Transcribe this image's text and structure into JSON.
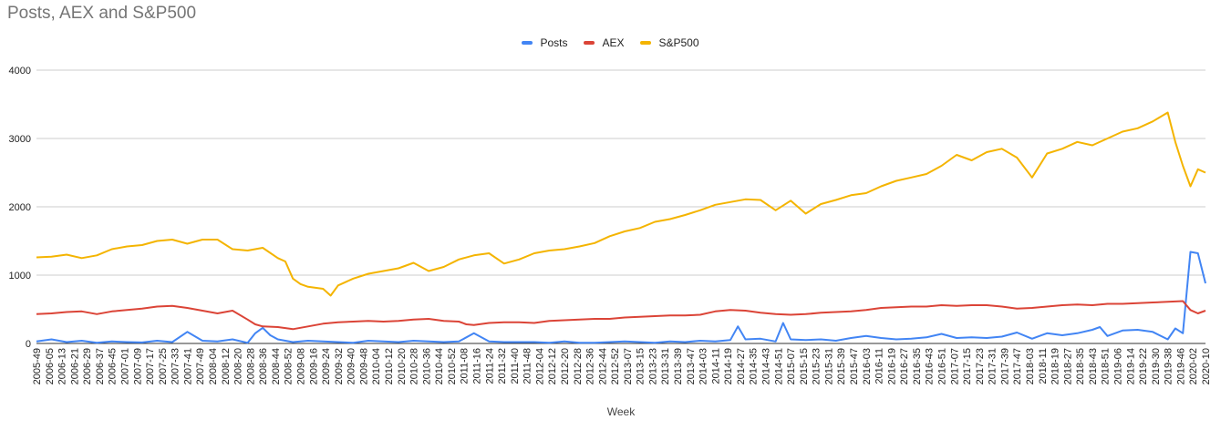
{
  "chart_data": {
    "type": "line",
    "title": "Posts, AEX and S&P500",
    "xlabel": "Week",
    "ylabel": "",
    "ylim": [
      0,
      4000
    ],
    "yticks": [
      0,
      1000,
      2000,
      3000,
      4000
    ],
    "grid": true,
    "legend_position": "top-center",
    "x_start": "2005-49",
    "x_end": "2020-10",
    "x_tick_labels": [
      "2005-49",
      "2006-05",
      "2006-13",
      "2006-21",
      "2006-29",
      "2006-37",
      "2006-45",
      "2007-01",
      "2007-09",
      "2007-17",
      "2007-25",
      "2007-33",
      "2007-41",
      "2007-49",
      "2008-04",
      "2008-12",
      "2008-20",
      "2008-28",
      "2008-36",
      "2008-44",
      "2008-52",
      "2009-08",
      "2009-16",
      "2009-24",
      "2009-32",
      "2009-40",
      "2009-48",
      "2010-04",
      "2010-12",
      "2010-20",
      "2010-28",
      "2010-36",
      "2010-44",
      "2010-52",
      "2011-08",
      "2011-16",
      "2011-24",
      "2011-32",
      "2011-40",
      "2011-48",
      "2012-04",
      "2012-12",
      "2012-20",
      "2012-28",
      "2012-36",
      "2012-44",
      "2012-52",
      "2013-07",
      "2013-15",
      "2013-23",
      "2013-31",
      "2013-39",
      "2013-47",
      "2014-03",
      "2014-11",
      "2014-19",
      "2014-27",
      "2014-35",
      "2014-43",
      "2014-51",
      "2015-07",
      "2015-15",
      "2015-23",
      "2015-31",
      "2015-39",
      "2015-47",
      "2016-03",
      "2016-11",
      "2016-19",
      "2016-27",
      "2016-35",
      "2016-43",
      "2016-51",
      "2017-07",
      "2017-15",
      "2017-23",
      "2017-31",
      "2017-39",
      "2017-47",
      "2018-03",
      "2018-11",
      "2018-19",
      "2018-27",
      "2018-35",
      "2018-43",
      "2018-51",
      "2019-06",
      "2019-14",
      "2019-22",
      "2019-30",
      "2019-38",
      "2019-46",
      "2020-02",
      "2020-10"
    ],
    "series": [
      {
        "name": "Posts",
        "color": "#4285f4",
        "points": [
          [
            0,
            30
          ],
          [
            2,
            60
          ],
          [
            4,
            20
          ],
          [
            6,
            40
          ],
          [
            8,
            10
          ],
          [
            10,
            30
          ],
          [
            12,
            20
          ],
          [
            14,
            15
          ],
          [
            16,
            40
          ],
          [
            18,
            20
          ],
          [
            20,
            170
          ],
          [
            22,
            40
          ],
          [
            24,
            30
          ],
          [
            26,
            60
          ],
          [
            28,
            10
          ],
          [
            29,
            150
          ],
          [
            30,
            230
          ],
          [
            31,
            120
          ],
          [
            32,
            60
          ],
          [
            34,
            20
          ],
          [
            36,
            40
          ],
          [
            38,
            30
          ],
          [
            40,
            20
          ],
          [
            42,
            10
          ],
          [
            44,
            40
          ],
          [
            46,
            30
          ],
          [
            48,
            20
          ],
          [
            50,
            40
          ],
          [
            52,
            30
          ],
          [
            54,
            20
          ],
          [
            56,
            30
          ],
          [
            58,
            150
          ],
          [
            60,
            30
          ],
          [
            62,
            20
          ],
          [
            64,
            20
          ],
          [
            66,
            20
          ],
          [
            68,
            10
          ],
          [
            70,
            30
          ],
          [
            72,
            10
          ],
          [
            74,
            10
          ],
          [
            76,
            20
          ],
          [
            78,
            30
          ],
          [
            80,
            20
          ],
          [
            82,
            10
          ],
          [
            84,
            30
          ],
          [
            86,
            20
          ],
          [
            88,
            40
          ],
          [
            90,
            30
          ],
          [
            92,
            50
          ],
          [
            93,
            250
          ],
          [
            94,
            60
          ],
          [
            96,
            70
          ],
          [
            98,
            30
          ],
          [
            99,
            300
          ],
          [
            100,
            60
          ],
          [
            102,
            50
          ],
          [
            104,
            60
          ],
          [
            106,
            40
          ],
          [
            108,
            80
          ],
          [
            110,
            110
          ],
          [
            112,
            80
          ],
          [
            114,
            60
          ],
          [
            116,
            70
          ],
          [
            118,
            90
          ],
          [
            120,
            140
          ],
          [
            122,
            80
          ],
          [
            124,
            90
          ],
          [
            126,
            80
          ],
          [
            128,
            100
          ],
          [
            130,
            160
          ],
          [
            132,
            70
          ],
          [
            134,
            150
          ],
          [
            136,
            120
          ],
          [
            138,
            150
          ],
          [
            140,
            200
          ],
          [
            141,
            240
          ],
          [
            142,
            110
          ],
          [
            144,
            190
          ],
          [
            146,
            200
          ],
          [
            148,
            170
          ],
          [
            150,
            60
          ],
          [
            151,
            220
          ],
          [
            152,
            150
          ],
          [
            153,
            1340
          ],
          [
            154,
            1320
          ],
          [
            155,
            880
          ]
        ]
      },
      {
        "name": "AEX",
        "color": "#db4437",
        "points": [
          [
            0,
            430
          ],
          [
            2,
            440
          ],
          [
            4,
            460
          ],
          [
            6,
            470
          ],
          [
            8,
            430
          ],
          [
            10,
            470
          ],
          [
            12,
            490
          ],
          [
            14,
            510
          ],
          [
            16,
            540
          ],
          [
            18,
            550
          ],
          [
            20,
            520
          ],
          [
            22,
            480
          ],
          [
            24,
            440
          ],
          [
            26,
            480
          ],
          [
            28,
            350
          ],
          [
            29,
            280
          ],
          [
            30,
            250
          ],
          [
            32,
            240
          ],
          [
            34,
            210
          ],
          [
            36,
            250
          ],
          [
            38,
            290
          ],
          [
            40,
            310
          ],
          [
            42,
            320
          ],
          [
            44,
            330
          ],
          [
            46,
            320
          ],
          [
            48,
            330
          ],
          [
            50,
            350
          ],
          [
            52,
            360
          ],
          [
            54,
            330
          ],
          [
            56,
            320
          ],
          [
            57,
            280
          ],
          [
            58,
            270
          ],
          [
            60,
            300
          ],
          [
            62,
            310
          ],
          [
            64,
            310
          ],
          [
            66,
            300
          ],
          [
            68,
            330
          ],
          [
            70,
            340
          ],
          [
            72,
            350
          ],
          [
            74,
            360
          ],
          [
            76,
            360
          ],
          [
            78,
            380
          ],
          [
            80,
            390
          ],
          [
            82,
            400
          ],
          [
            84,
            410
          ],
          [
            86,
            410
          ],
          [
            88,
            420
          ],
          [
            90,
            470
          ],
          [
            92,
            490
          ],
          [
            94,
            480
          ],
          [
            96,
            450
          ],
          [
            98,
            430
          ],
          [
            100,
            420
          ],
          [
            102,
            430
          ],
          [
            104,
            450
          ],
          [
            106,
            460
          ],
          [
            108,
            470
          ],
          [
            110,
            490
          ],
          [
            112,
            520
          ],
          [
            114,
            530
          ],
          [
            116,
            540
          ],
          [
            118,
            540
          ],
          [
            120,
            560
          ],
          [
            122,
            550
          ],
          [
            124,
            560
          ],
          [
            126,
            560
          ],
          [
            128,
            540
          ],
          [
            130,
            510
          ],
          [
            132,
            520
          ],
          [
            134,
            540
          ],
          [
            136,
            560
          ],
          [
            138,
            570
          ],
          [
            140,
            560
          ],
          [
            142,
            580
          ],
          [
            144,
            580
          ],
          [
            146,
            590
          ],
          [
            148,
            600
          ],
          [
            150,
            610
          ],
          [
            152,
            620
          ],
          [
            153,
            490
          ],
          [
            154,
            440
          ],
          [
            155,
            480
          ]
        ]
      },
      {
        "name": "S&P500",
        "color": "#f4b400",
        "points": [
          [
            0,
            1260
          ],
          [
            2,
            1270
          ],
          [
            4,
            1300
          ],
          [
            6,
            1250
          ],
          [
            8,
            1290
          ],
          [
            10,
            1380
          ],
          [
            12,
            1420
          ],
          [
            14,
            1440
          ],
          [
            16,
            1500
          ],
          [
            18,
            1520
          ],
          [
            20,
            1460
          ],
          [
            22,
            1520
          ],
          [
            24,
            1520
          ],
          [
            26,
            1380
          ],
          [
            28,
            1360
          ],
          [
            30,
            1400
          ],
          [
            32,
            1250
          ],
          [
            33,
            1200
          ],
          [
            34,
            950
          ],
          [
            35,
            870
          ],
          [
            36,
            830
          ],
          [
            38,
            800
          ],
          [
            39,
            700
          ],
          [
            40,
            850
          ],
          [
            42,
            950
          ],
          [
            44,
            1020
          ],
          [
            46,
            1060
          ],
          [
            48,
            1100
          ],
          [
            50,
            1180
          ],
          [
            52,
            1060
          ],
          [
            54,
            1120
          ],
          [
            56,
            1230
          ],
          [
            58,
            1290
          ],
          [
            60,
            1320
          ],
          [
            62,
            1170
          ],
          [
            64,
            1230
          ],
          [
            66,
            1320
          ],
          [
            68,
            1360
          ],
          [
            70,
            1380
          ],
          [
            72,
            1420
          ],
          [
            74,
            1470
          ],
          [
            76,
            1570
          ],
          [
            78,
            1640
          ],
          [
            80,
            1690
          ],
          [
            82,
            1780
          ],
          [
            84,
            1820
          ],
          [
            86,
            1880
          ],
          [
            88,
            1950
          ],
          [
            90,
            2030
          ],
          [
            92,
            2070
          ],
          [
            94,
            2110
          ],
          [
            96,
            2100
          ],
          [
            98,
            1950
          ],
          [
            100,
            2090
          ],
          [
            102,
            1900
          ],
          [
            104,
            2040
          ],
          [
            106,
            2100
          ],
          [
            108,
            2170
          ],
          [
            110,
            2200
          ],
          [
            112,
            2300
          ],
          [
            114,
            2380
          ],
          [
            116,
            2430
          ],
          [
            118,
            2480
          ],
          [
            120,
            2600
          ],
          [
            122,
            2760
          ],
          [
            124,
            2680
          ],
          [
            126,
            2800
          ],
          [
            128,
            2850
          ],
          [
            130,
            2720
          ],
          [
            132,
            2430
          ],
          [
            134,
            2780
          ],
          [
            136,
            2850
          ],
          [
            138,
            2950
          ],
          [
            140,
            2900
          ],
          [
            142,
            3000
          ],
          [
            144,
            3100
          ],
          [
            146,
            3150
          ],
          [
            148,
            3250
          ],
          [
            150,
            3380
          ],
          [
            151,
            2950
          ],
          [
            152,
            2600
          ],
          [
            153,
            2300
          ],
          [
            154,
            2550
          ],
          [
            155,
            2500
          ]
        ]
      }
    ]
  }
}
